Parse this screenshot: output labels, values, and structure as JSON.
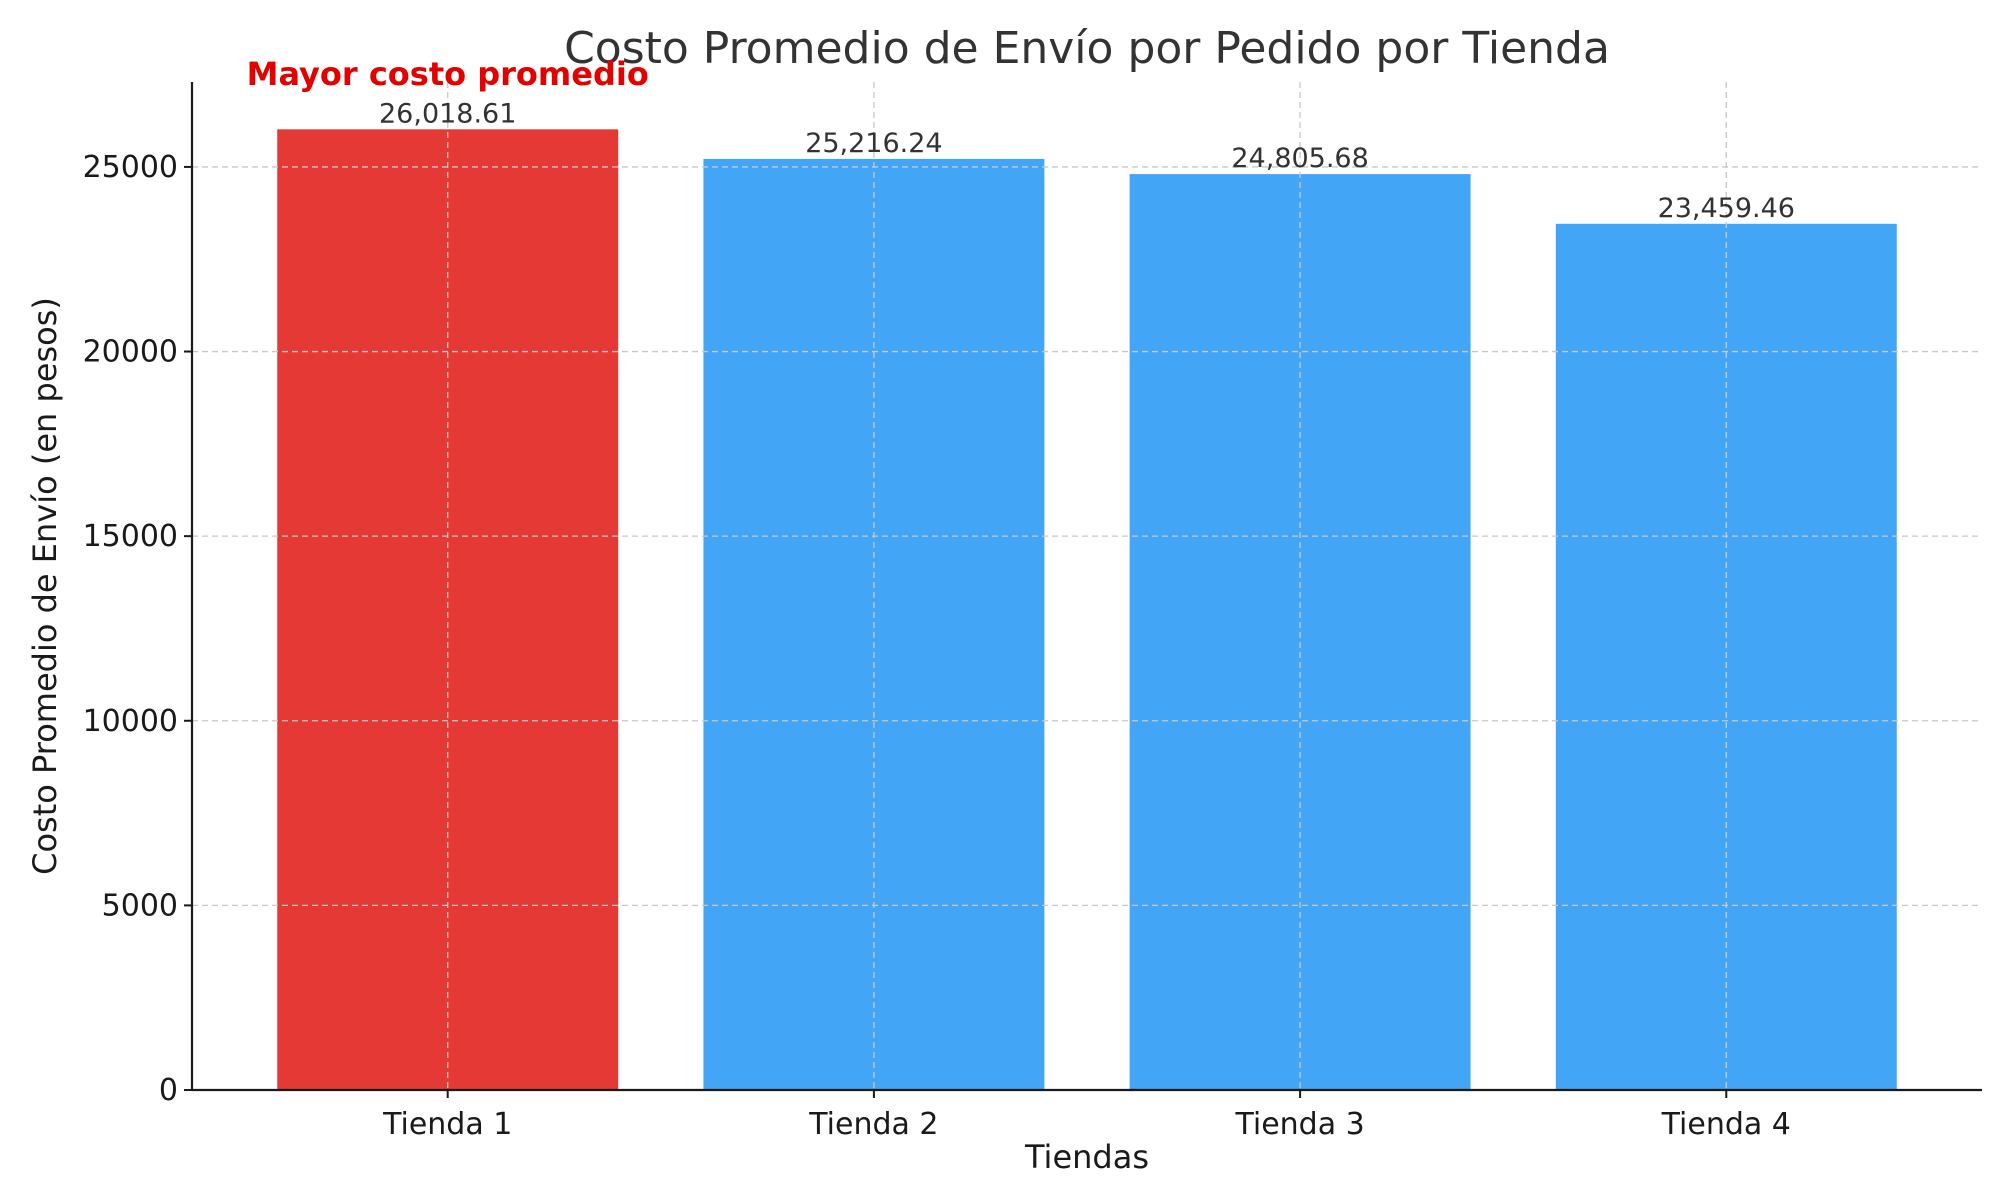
{
  "chart_data": {
    "type": "bar",
    "title": "Costo Promedio de Envío por Pedido por Tienda",
    "xlabel": "Tiendas",
    "ylabel": "Costo Promedio de Envío (en pesos)",
    "categories": [
      "Tienda 1",
      "Tienda 2",
      "Tienda 3",
      "Tienda 4"
    ],
    "values": [
      26018.61,
      25216.24,
      24805.68,
      23459.46
    ],
    "value_labels": [
      "26,018.61",
      "25,216.24",
      "24,805.68",
      "23,459.46"
    ],
    "bar_colors": [
      "#e53935",
      "#42a5f5",
      "#42a5f5",
      "#42a5f5"
    ],
    "ylim": [
      0,
      27300
    ],
    "yticks": [
      0,
      5000,
      10000,
      15000,
      20000,
      25000
    ],
    "ytick_labels": [
      "0",
      "5000",
      "10000",
      "15000",
      "20000",
      "25000"
    ],
    "grid": true,
    "annotation": {
      "text": "Mayor costo promedio",
      "category": "Tienda 1",
      "color": "#e50000"
    }
  }
}
